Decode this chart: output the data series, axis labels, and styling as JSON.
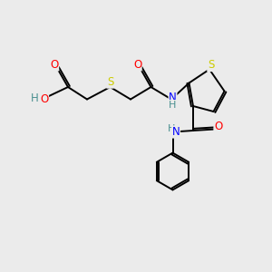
{
  "background_color": "#ebebeb",
  "bond_color": "#000000",
  "atom_colors": {
    "O": "#ff0000",
    "S_thio": "#cccc00",
    "S_chain": "#cccc00",
    "N": "#0000ff",
    "H": "#4a9090",
    "C": "#000000"
  },
  "figsize": [
    3.0,
    3.0
  ],
  "dpi": 100
}
